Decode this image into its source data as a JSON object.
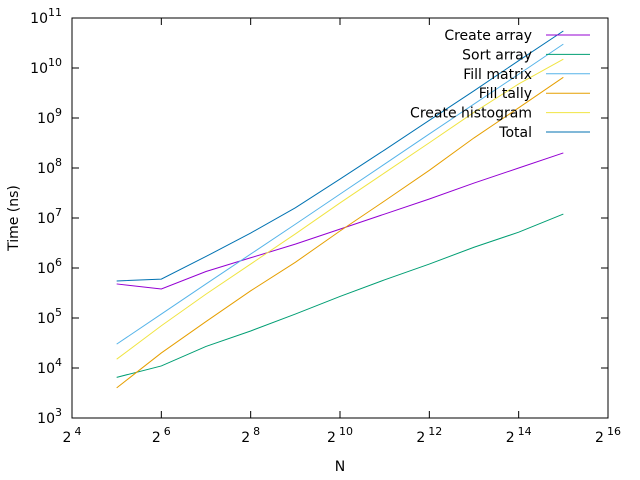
{
  "chart_data": {
    "type": "line",
    "xlabel": "N",
    "ylabel": "Time (ns)",
    "x_scale": "log2",
    "y_scale": "log10",
    "xlim": [
      16,
      65536
    ],
    "ylim": [
      1000,
      100000000000
    ],
    "x_ticks": [
      {
        "value": 16,
        "base": "2",
        "exp": "4"
      },
      {
        "value": 64,
        "base": "2",
        "exp": "6"
      },
      {
        "value": 256,
        "base": "2",
        "exp": "8"
      },
      {
        "value": 1024,
        "base": "2",
        "exp": "10"
      },
      {
        "value": 4096,
        "base": "2",
        "exp": "12"
      },
      {
        "value": 16384,
        "base": "2",
        "exp": "14"
      },
      {
        "value": 65536,
        "base": "2",
        "exp": "16"
      }
    ],
    "y_ticks": [
      {
        "value": 1000,
        "base": "10",
        "exp": "3"
      },
      {
        "value": 10000,
        "base": "10",
        "exp": "4"
      },
      {
        "value": 100000,
        "base": "10",
        "exp": "5"
      },
      {
        "value": 1000000,
        "base": "10",
        "exp": "6"
      },
      {
        "value": 10000000,
        "base": "10",
        "exp": "7"
      },
      {
        "value": 100000000,
        "base": "10",
        "exp": "8"
      },
      {
        "value": 1000000000,
        "base": "10",
        "exp": "9"
      },
      {
        "value": 10000000000,
        "base": "10",
        "exp": "10"
      },
      {
        "value": 100000000000,
        "base": "10",
        "exp": "11"
      }
    ],
    "legend_position": "top-right",
    "grid": false,
    "x": [
      32,
      64,
      128,
      256,
      512,
      1024,
      2048,
      4096,
      8192,
      16384,
      32768
    ],
    "series": [
      {
        "name": "Create array",
        "color": "#9400d3",
        "values": [
          480000,
          380000,
          850000,
          1600000,
          3000000,
          6000000,
          12000000,
          24000000,
          50000000,
          100000000,
          200000000
        ]
      },
      {
        "name": "Sort array",
        "color": "#009e73",
        "values": [
          6500,
          11000,
          27000,
          55000,
          120000,
          270000,
          580000,
          1200000,
          2600000,
          5200000,
          12000000
        ]
      },
      {
        "name": "Fill matrix",
        "color": "#56b4e9",
        "values": [
          30000,
          120000,
          480000,
          1900000,
          7500000,
          30000000,
          120000000,
          480000000,
          1900000000,
          7500000000,
          30000000000
        ]
      },
      {
        "name": "Fill tally",
        "color": "#e69f00",
        "values": [
          4000,
          20000,
          85000,
          350000,
          1300000,
          5500000,
          22000000,
          90000000,
          400000000,
          1600000000,
          6500000000
        ]
      },
      {
        "name": "Create histogram",
        "color": "#f0e442",
        "values": [
          15000,
          70000,
          300000,
          1200000,
          4800000,
          20000000,
          80000000,
          320000000,
          1300000000,
          4800000000,
          15000000000
        ]
      },
      {
        "name": "Total",
        "color": "#0072b2",
        "values": [
          550000,
          600000,
          1700000,
          5000000,
          16000000,
          60000000,
          230000000,
          900000000,
          3500000000,
          14000000000,
          55000000000
        ]
      }
    ]
  }
}
